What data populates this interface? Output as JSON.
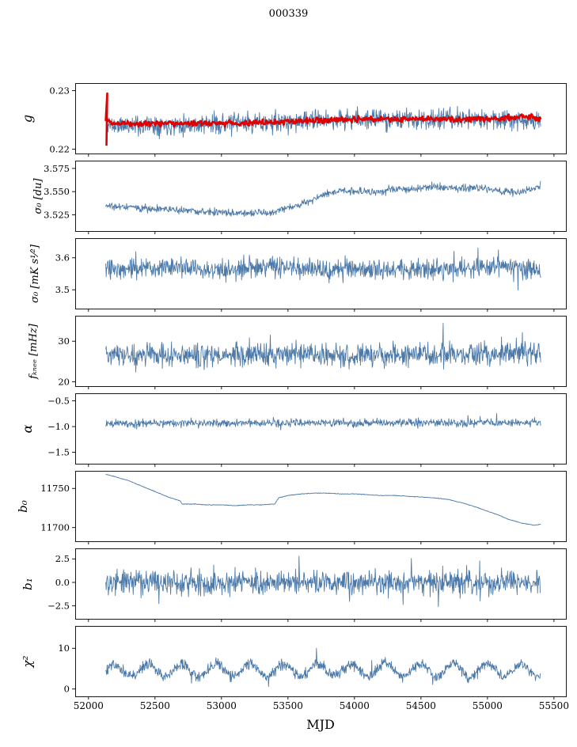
{
  "title": "000339",
  "chart_data": {
    "type": "line",
    "title": "000339",
    "xlabel": "MJD",
    "x_range": [
      52130,
      55400
    ],
    "xlim": [
      51900,
      55590
    ],
    "xticks": [
      52000,
      52500,
      53000,
      53500,
      54000,
      54500,
      55000,
      55500
    ],
    "xtick_labels": [
      "52000",
      "52500",
      "53000",
      "53500",
      "54000",
      "54500",
      "55000",
      "55500"
    ],
    "n_points": 1000,
    "grid": false,
    "legend": "none",
    "line_color": "#4d7aa9",
    "highlight_color": "#e00000",
    "panels": [
      {
        "id": "g",
        "ylabel": "g",
        "label_x": 40,
        "label_size": 16,
        "ylim": [
          0.2192,
          0.2312
        ],
        "yticks": [
          {
            "v": 0.22,
            "label": "0.22"
          },
          {
            "v": 0.23,
            "label": "0.23"
          }
        ],
        "series": [
          {
            "name": "g-raw",
            "color": "#4d7aa9",
            "width": 0.9,
            "seed": 11,
            "noise": 0.0013,
            "trend": [
              [
                52130,
                0.2246
              ],
              [
                52200,
                0.224
              ],
              [
                52500,
                0.2242
              ],
              [
                53000,
                0.2243
              ],
              [
                53500,
                0.2246
              ],
              [
                53800,
                0.225
              ],
              [
                54100,
                0.2252
              ],
              [
                54400,
                0.225
              ],
              [
                54700,
                0.2252
              ],
              [
                55000,
                0.225
              ],
              [
                55200,
                0.2252
              ],
              [
                55400,
                0.2247
              ]
            ]
          },
          {
            "name": "g-smoothed",
            "color": "#e00000",
            "width": 2.6,
            "seed": 12,
            "noise": 0.00035,
            "n_points": 600,
            "start_spike": {
              "x": 52135,
              "y0": 0.2206,
              "y1": 0.2295
            },
            "trend": [
              [
                52130,
                0.2252
              ],
              [
                52160,
                0.2246
              ],
              [
                52300,
                0.2244
              ],
              [
                52600,
                0.2244
              ],
              [
                53000,
                0.2244
              ],
              [
                53400,
                0.2246
              ],
              [
                53700,
                0.2249
              ],
              [
                54000,
                0.2251
              ],
              [
                54200,
                0.2252
              ],
              [
                54500,
                0.2251
              ],
              [
                54800,
                0.2252
              ],
              [
                55000,
                0.2252
              ],
              [
                55150,
                0.2253
              ],
              [
                55250,
                0.2257
              ],
              [
                55350,
                0.2254
              ],
              [
                55400,
                0.225
              ]
            ]
          }
        ]
      },
      {
        "id": "sigma0-du",
        "ylabel": "σ₀ [du]",
        "label_x": 52,
        "label_size": 13,
        "ylim": [
          3.507,
          3.583
        ],
        "yticks": [
          {
            "v": 3.525,
            "label": "3.525"
          },
          {
            "v": 3.55,
            "label": "3.550"
          },
          {
            "v": 3.575,
            "label": "3.575"
          }
        ],
        "series": [
          {
            "name": "sigma0-du",
            "color": "#4d7aa9",
            "width": 0.9,
            "seed": 21,
            "noise": 0.003,
            "trend": [
              [
                52130,
                3.535
              ],
              [
                52300,
                3.533
              ],
              [
                52600,
                3.531
              ],
              [
                52800,
                3.529
              ],
              [
                53000,
                3.527
              ],
              [
                53200,
                3.526
              ],
              [
                53300,
                3.528
              ],
              [
                53380,
                3.526
              ],
              [
                53450,
                3.531
              ],
              [
                53550,
                3.534
              ],
              [
                53650,
                3.539
              ],
              [
                53750,
                3.546
              ],
              [
                53850,
                3.55
              ],
              [
                54000,
                3.551
              ],
              [
                54150,
                3.549
              ],
              [
                54300,
                3.553
              ],
              [
                54450,
                3.552
              ],
              [
                54600,
                3.556
              ],
              [
                54750,
                3.553
              ],
              [
                54900,
                3.555
              ],
              [
                55050,
                3.551
              ],
              [
                55200,
                3.549
              ],
              [
                55300,
                3.551
              ],
              [
                55400,
                3.557
              ]
            ]
          }
        ]
      },
      {
        "id": "sigma0-mks",
        "ylabel": "σ₀ [mK s¹⁄²]",
        "label_x": 48,
        "label_size": 13,
        "ylim": [
          3.44,
          3.66
        ],
        "yticks": [
          {
            "v": 3.5,
            "label": "3.5"
          },
          {
            "v": 3.6,
            "label": "3.6"
          }
        ],
        "series": [
          {
            "name": "sigma0-mks",
            "color": "#4d7aa9",
            "width": 0.9,
            "seed": 31,
            "noise": 0.022,
            "spike_prob": 0.02,
            "spike_amp": 0.05,
            "trend": [
              [
                52130,
                3.56
              ],
              [
                52300,
                3.572
              ],
              [
                52600,
                3.568
              ],
              [
                53000,
                3.562
              ],
              [
                53400,
                3.568
              ],
              [
                53800,
                3.566
              ],
              [
                54200,
                3.564
              ],
              [
                54600,
                3.565
              ],
              [
                55000,
                3.57
              ],
              [
                55150,
                3.576
              ],
              [
                55300,
                3.566
              ],
              [
                55400,
                3.56
              ]
            ]
          }
        ]
      },
      {
        "id": "fknee",
        "ylabel": "fₖₙₑₑ [mHz]",
        "label_x": 46,
        "label_size": 13,
        "ylim": [
          18.8,
          36.2
        ],
        "yticks": [
          {
            "v": 20,
            "label": "20"
          },
          {
            "v": 30,
            "label": "30"
          }
        ],
        "series": [
          {
            "name": "fknee",
            "color": "#4d7aa9",
            "width": 0.9,
            "seed": 41,
            "noise": 2.2,
            "spike_prob": 0.02,
            "spike_amp": 4,
            "trend": [
              [
                52130,
                26.5
              ],
              [
                52800,
                26.3
              ],
              [
                53500,
                26.8
              ],
              [
                54200,
                26.5
              ],
              [
                54800,
                26.8
              ],
              [
                55400,
                27.0
              ]
            ]
          }
        ]
      },
      {
        "id": "alpha",
        "ylabel": "α",
        "label_x": 40,
        "label_size": 16,
        "ylim": [
          -1.73,
          -0.36
        ],
        "yticks": [
          {
            "v": -1.5,
            "label": "−1.5"
          },
          {
            "v": -1.0,
            "label": "−1.0"
          },
          {
            "v": -0.5,
            "label": "−0.5"
          }
        ],
        "series": [
          {
            "name": "alpha",
            "color": "#4d7aa9",
            "width": 0.9,
            "seed": 51,
            "noise": 0.055,
            "spike_prob": 0.02,
            "spike_amp": 0.12,
            "trend": [
              [
                52130,
                -0.935
              ],
              [
                53000,
                -0.93
              ],
              [
                54000,
                -0.93
              ],
              [
                55400,
                -0.925
              ]
            ]
          }
        ]
      },
      {
        "id": "b0",
        "ylabel": "b₀",
        "label_x": 34,
        "label_size": 15,
        "ylim": [
          11682,
          11772
        ],
        "yticks": [
          {
            "v": 11700,
            "label": "11700"
          },
          {
            "v": 11750,
            "label": "11750"
          }
        ],
        "series": [
          {
            "name": "b0",
            "color": "#4d7aa9",
            "width": 0.9,
            "seed": 61,
            "noise": 0.3,
            "trend": [
              [
                52130,
                11768
              ],
              [
                52200,
                11765
              ],
              [
                52300,
                11760
              ],
              [
                52400,
                11753
              ],
              [
                52500,
                11746
              ],
              [
                52600,
                11739
              ],
              [
                52690,
                11734
              ],
              [
                52705,
                11730
              ],
              [
                52800,
                11730
              ],
              [
                52900,
                11729
              ],
              [
                53000,
                11729
              ],
              [
                53100,
                11728
              ],
              [
                53200,
                11729
              ],
              [
                53300,
                11729
              ],
              [
                53400,
                11730
              ],
              [
                53430,
                11738
              ],
              [
                53500,
                11741
              ],
              [
                53600,
                11743
              ],
              [
                53700,
                11744
              ],
              [
                53800,
                11744
              ],
              [
                53900,
                11743
              ],
              [
                54000,
                11743
              ],
              [
                54100,
                11742
              ],
              [
                54200,
                11741
              ],
              [
                54300,
                11741
              ],
              [
                54400,
                11740
              ],
              [
                54500,
                11739
              ],
              [
                54600,
                11738
              ],
              [
                54700,
                11736
              ],
              [
                54800,
                11732
              ],
              [
                54900,
                11727
              ],
              [
                55000,
                11721
              ],
              [
                55100,
                11715
              ],
              [
                55150,
                11711
              ],
              [
                55250,
                11706
              ],
              [
                55350,
                11703
              ],
              [
                55400,
                11704
              ]
            ]
          }
        ]
      },
      {
        "id": "b1",
        "ylabel": "b₁",
        "label_x": 40,
        "label_size": 15,
        "ylim": [
          -3.92,
          3.58
        ],
        "yticks": [
          {
            "v": -2.5,
            "label": "−2.5"
          },
          {
            "v": 0.0,
            "label": "0.0"
          },
          {
            "v": 2.5,
            "label": "2.5"
          }
        ],
        "series": [
          {
            "name": "b1",
            "color": "#4d7aa9",
            "width": 0.9,
            "seed": 71,
            "noise": 0.9,
            "spike_prob": 0.015,
            "spike_amp": 2.5,
            "trend": [
              [
                52130,
                0
              ],
              [
                55400,
                0
              ]
            ]
          }
        ]
      },
      {
        "id": "chi2",
        "ylabel": "χ²",
        "label_x": 40,
        "label_size": 15,
        "ylim": [
          -1.9,
          15.4
        ],
        "yticks": [
          {
            "v": 0,
            "label": "0"
          },
          {
            "v": 10,
            "label": "10"
          }
        ],
        "series": [
          {
            "name": "chi2",
            "color": "#4d7aa9",
            "width": 0.9,
            "seed": 81,
            "noise": 1.0,
            "osc": {
              "amp": 1.5,
              "period": 255,
              "phase": 0
            },
            "spike_prob": 0.01,
            "spike_amp": 3,
            "trend": [
              [
                52130,
                4.6
              ],
              [
                55400,
                4.6
              ]
            ]
          }
        ]
      }
    ]
  }
}
